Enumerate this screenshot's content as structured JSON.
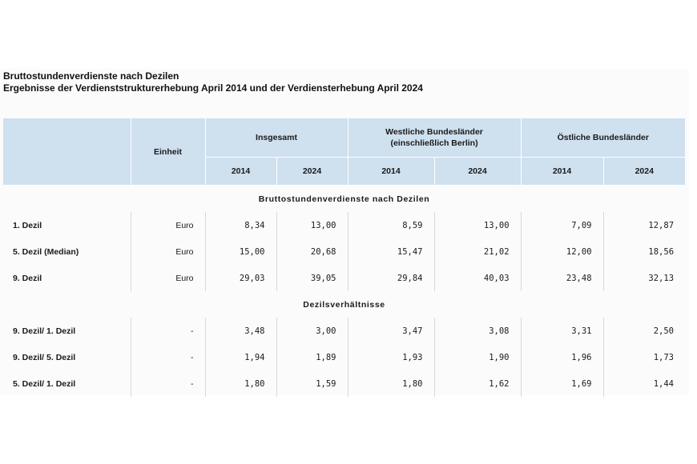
{
  "title": {
    "line1": "Bruttostundenverdienste nach Dezilen",
    "line2": "Ergebnisse der Verdienststrukturerhebung April 2014 und der Verdiensterhebung April 2024"
  },
  "header": {
    "unit": "Einheit",
    "groups": [
      {
        "label": "Insgesamt"
      },
      {
        "label_line1": "Westliche Bundesländer",
        "label_line2": "(einschließlich Berlin)"
      },
      {
        "label": "Östliche Bundesländer"
      }
    ],
    "years": [
      "2014",
      "2024",
      "2014",
      "2024",
      "2014",
      "2024"
    ]
  },
  "sections": [
    {
      "title": "Bruttostundenverdienste nach Dezilen",
      "rows": [
        {
          "label": "1. Dezil",
          "unit": "Euro",
          "values": [
            "8,34",
            "13,00",
            "8,59",
            "13,00",
            "7,09",
            "12,87"
          ]
        },
        {
          "label": "5. Dezil (Median)",
          "unit": "Euro",
          "values": [
            "15,00",
            "20,68",
            "15,47",
            "21,02",
            "12,00",
            "18,56"
          ]
        },
        {
          "label": "9. Dezil",
          "unit": "Euro",
          "values": [
            "29,03",
            "39,05",
            "29,84",
            "40,03",
            "23,48",
            "32,13"
          ]
        }
      ]
    },
    {
      "title": "Dezilsverhältnisse",
      "rows": [
        {
          "label": "9. Dezil/ 1. Dezil",
          "unit": "-",
          "values": [
            "3,48",
            "3,00",
            "3,47",
            "3,08",
            "3,31",
            "2,50"
          ]
        },
        {
          "label": "9. Dezil/ 5. Dezil",
          "unit": "-",
          "values": [
            "1,94",
            "1,89",
            "1,93",
            "1,90",
            "1,96",
            "1,73"
          ]
        },
        {
          "label": "5. Dezil/ 1. Dezil",
          "unit": "-",
          "values": [
            "1,80",
            "1,59",
            "1,80",
            "1,62",
            "1,69",
            "1,44"
          ]
        }
      ]
    }
  ]
}
